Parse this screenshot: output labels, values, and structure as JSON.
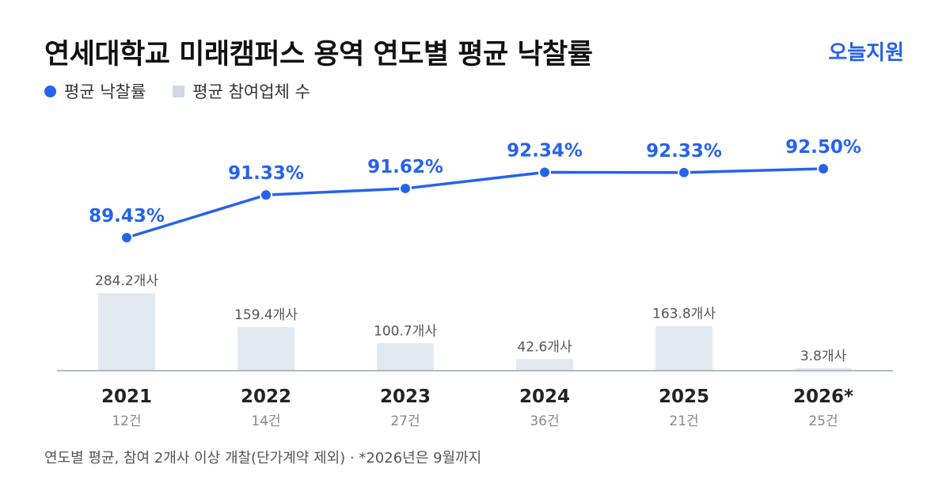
{
  "header": {
    "title": "연세대학교 미래캠퍼스 용역 연도별 평균 낙찰률",
    "brand": "오늘지원"
  },
  "legend": {
    "rate_label": "평균 낙찰률",
    "count_label": "평균 참여업체 수"
  },
  "footnote": "연도별 평균, 참여 2개사 이상 개찰(단가계약 제외) · *2026년은 9월까지",
  "colors": {
    "line": "#2563eb",
    "bar": "#e2e8f0",
    "axis": "#9aa5b1"
  },
  "chart_data": {
    "type": "bar+line",
    "categories": [
      "2021",
      "2022",
      "2023",
      "2024",
      "2025",
      "2026*"
    ],
    "case_counts": [
      "12건",
      "14건",
      "27건",
      "36건",
      "21건",
      "25건"
    ],
    "series": [
      {
        "name": "평균 낙찰률",
        "type": "line",
        "values": [
          89.43,
          91.33,
          91.62,
          92.34,
          92.33,
          92.5
        ],
        "labels": [
          "89.43%",
          "91.33%",
          "91.62%",
          "92.34%",
          "92.33%",
          "92.50%"
        ]
      },
      {
        "name": "평균 참여업체 수",
        "type": "bar",
        "values": [
          284.2,
          159.4,
          100.7,
          42.6,
          163.8,
          3.8
        ],
        "labels": [
          "284.2개사",
          "159.4개사",
          "100.7개사",
          "42.6개사",
          "163.8개사",
          "3.8개사"
        ]
      }
    ]
  }
}
